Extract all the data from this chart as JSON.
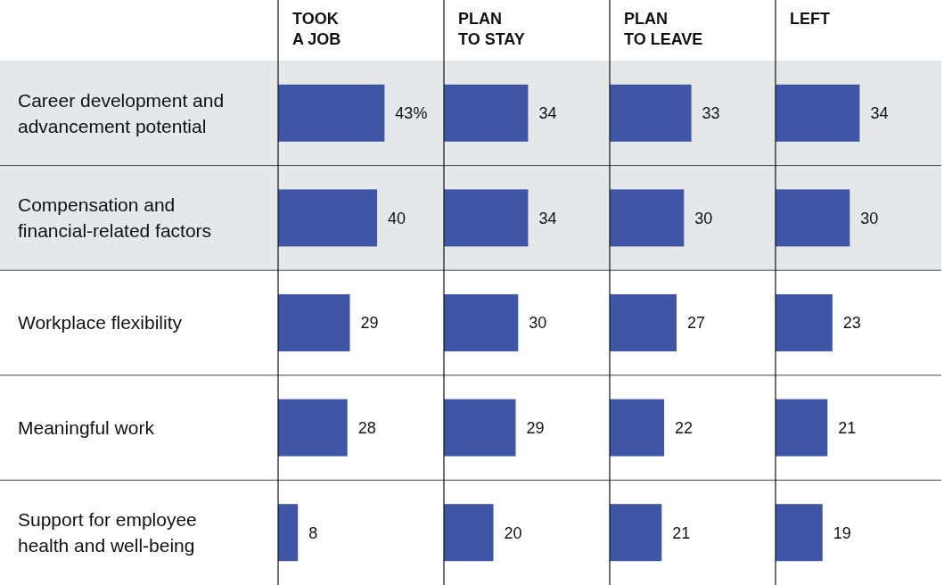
{
  "chart_data": [
    {
      "type": "bar",
      "orientation": "horizontal",
      "title": "TOOK A JOB",
      "categories": [
        "Career development and advancement potential",
        "Compensation and financial-related factors",
        "Workplace flexibility",
        "Meaningful work",
        "Support for employee health and well-being"
      ],
      "values": [
        43,
        40,
        29,
        28,
        8
      ],
      "value_labels": [
        "43%",
        "40",
        "29",
        "28",
        "8"
      ],
      "color": "#3f55a5",
      "xlim": [
        0,
        67
      ],
      "tick_labels": "y",
      "bands": [
        {
          "axis": "y",
          "from": "Career development and advancement potential",
          "to": "Compensation and financial-related factors",
          "color": "#e6e7e9"
        }
      ]
    },
    {
      "type": "bar",
      "orientation": "horizontal",
      "title": "PLAN TO STAY",
      "categories": [
        "Career development and advancement potential",
        "Compensation and financial-related factors",
        "Workplace flexibility",
        "Meaningful work",
        "Support for employee health and well-being"
      ],
      "values": [
        34,
        34,
        30,
        29,
        20
      ],
      "data_labels": true,
      "color": "#3f55a5",
      "xlim": [
        0,
        67
      ],
      "tick_labels": false,
      "bands": [
        {
          "axis": "y",
          "from": "Career development and advancement potential",
          "to": "Compensation and financial-related factors",
          "color": "#e6e7e9"
        }
      ]
    },
    {
      "type": "bar",
      "orientation": "horizontal",
      "title": "PLAN TO LEAVE",
      "categories": [
        "Career development and advancement potential",
        "Compensation and financial-related factors",
        "Workplace flexibility",
        "Meaningful work",
        "Support for employee health and well-being"
      ],
      "values": [
        33,
        30,
        27,
        22,
        21
      ],
      "data_labels": true,
      "color": "#3f55a5",
      "xlim": [
        0,
        67
      ],
      "tick_labels": false,
      "bands": [
        {
          "axis": "y",
          "from": "Career development and advancement potential",
          "to": "Compensation and financial-related factors",
          "color": "#e6e7e9"
        }
      ]
    },
    {
      "type": "bar",
      "orientation": "horizontal",
      "title": "LEFT",
      "categories": [
        "Career development and advancement potential",
        "Compensation and financial-related factors",
        "Workplace flexibility",
        "Meaningful work",
        "Support for employee health and well-being"
      ],
      "values": [
        34,
        30,
        23,
        21,
        19
      ],
      "data_labels": true,
      "color": "#3f55a5",
      "xlim": [
        0,
        67
      ],
      "tick_labels": false,
      "bands": [
        {
          "axis": "y",
          "from": "Career development and advancement potential",
          "to": "Compensation and financial-related factors",
          "color": "#e6e7e9"
        }
      ]
    }
  ]
}
